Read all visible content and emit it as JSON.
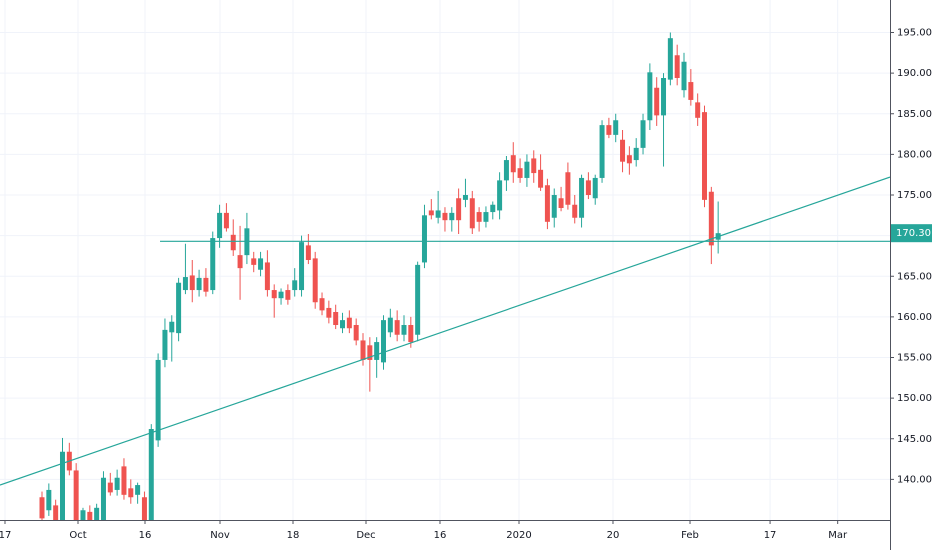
{
  "chart_data": {
    "type": "candlestick",
    "up_color": "#26a69a",
    "down_color": "#ef5350",
    "open": [
      137.8,
      136.2,
      136.8,
      135.0,
      143.4,
      141.1,
      135,
      136,
      135,
      135,
      139.6,
      138.7,
      141.6,
      138.9,
      138.1,
      137.8,
      135,
      144.8,
      154.7,
      158.1,
      158,
      163.3,
      165.1,
      163.3,
      164.8,
      163.3,
      169.7,
      172.8,
      170.1,
      167.6,
      167.6,
      167.2,
      165.8,
      166.7,
      163.3,
      162.3,
      163.3,
      163.3,
      163.3,
      168.8,
      167.2,
      162.3,
      161.1,
      160.6,
      158.6,
      159.9,
      159,
      157.1,
      156.5,
      154.7,
      154.4,
      158.1,
      159.6,
      157.8,
      159,
      157.8,
      166.7,
      173.1,
      172.2,
      172.8,
      171.9,
      174.6,
      174.4,
      174.6,
      172.9,
      171.7,
      172.9,
      173.1,
      176.8,
      179.9,
      178.3,
      177.1,
      179.5,
      178.1,
      176.2,
      172.2,
      174.6,
      177.8,
      173.8,
      172.2,
      176.8,
      174.6,
      177.1,
      183.6,
      182.4,
      181.8,
      179.9,
      179.3,
      180.8,
      184.2,
      188.2,
      184.8,
      189.2,
      192.2,
      187.9,
      188.9,
      186.4,
      185.2,
      175.4,
      169.5
    ],
    "high": [
      138.5,
      139.5,
      137.5,
      145.1,
      144.5,
      142,
      136.5,
      136.8,
      137,
      141,
      140.8,
      141.2,
      142.6,
      140,
      139.6,
      138.5,
      146.8,
      155.5,
      159.8,
      160.2,
      164.8,
      169,
      167,
      165.8,
      166,
      170.5,
      173.8,
      174,
      172,
      171.2,
      172.8,
      168,
      168,
      168.2,
      164,
      163.5,
      164,
      166,
      170,
      170.2,
      168,
      163,
      162,
      161.5,
      160.5,
      160.8,
      159.8,
      158,
      157.5,
      157.5,
      160.2,
      161,
      160.8,
      160.2,
      160,
      166.8,
      173.8,
      174.5,
      175.5,
      173.5,
      173.5,
      175.8,
      177,
      175.5,
      173.5,
      173.6,
      174.2,
      177.8,
      179.8,
      181.5,
      179.5,
      180,
      180.5,
      180,
      177,
      175.8,
      176,
      179,
      175,
      177.5,
      177.8,
      177.5,
      184.2,
      184.5,
      185,
      183,
      181,
      182,
      185,
      191.2,
      189.5,
      190,
      195,
      193.5,
      192.5,
      190.5,
      187.5,
      186,
      176,
      174.2
    ],
    "low": [
      134.5,
      135.5,
      134,
      134.5,
      140.5,
      134,
      134,
      134,
      134,
      134.5,
      138,
      138,
      137.5,
      137,
      137,
      134,
      134.5,
      144,
      153.8,
      154.5,
      157,
      162.8,
      161.8,
      162.5,
      162.5,
      162.8,
      168.5,
      170.5,
      167.5,
      162.1,
      166.5,
      165.5,
      165,
      162.5,
      159.9,
      161.5,
      161.5,
      162.5,
      162.5,
      166.5,
      161,
      160.2,
      159.2,
      158.5,
      158,
      158,
      156.5,
      154,
      150.8,
      152.5,
      153.5,
      157.5,
      157,
      157,
      156.2,
      157,
      166,
      172,
      171.5,
      170.5,
      170.5,
      170.2,
      173.5,
      170.2,
      170.5,
      171,
      172,
      172,
      175.5,
      176.5,
      176.5,
      176,
      176.5,
      175.5,
      170.8,
      171,
      173,
      173.2,
      171.5,
      171,
      174.5,
      173.8,
      176.5,
      182,
      181.5,
      177.8,
      177.5,
      178.5,
      180,
      183,
      183.5,
      178.5,
      188.5,
      188.5,
      187,
      186,
      183.5,
      173.5,
      166.5,
      167.8
    ],
    "close": [
      135.2,
      138.7,
      135.0,
      143.4,
      141.1,
      135.0,
      136.2,
      135,
      136.5,
      140.2,
      138.4,
      140.2,
      138.1,
      137.8,
      139.3,
      135,
      146.2,
      154.7,
      158.4,
      159.4,
      164.2,
      164.9,
      163.3,
      164.8,
      163.1,
      169.7,
      172.8,
      170.9,
      168.2,
      166,
      170.9,
      166.4,
      167.2,
      163.3,
      162.3,
      163.1,
      162.1,
      164.5,
      169.2,
      167,
      161.8,
      160.8,
      159.9,
      159,
      159.6,
      158.6,
      157.1,
      154.7,
      154.7,
      156.9,
      159.6,
      159.9,
      157.8,
      159,
      156.9,
      166.4,
      172.5,
      172.5,
      173.1,
      171.9,
      172.8,
      171.9,
      175,
      170.9,
      171.7,
      172.9,
      173.8,
      176.8,
      179.3,
      177.8,
      177.1,
      179.1,
      177.7,
      175.9,
      171.7,
      175,
      173.4,
      173.8,
      172.2,
      177.1,
      175,
      177.1,
      183.6,
      182.4,
      184.2,
      179.1,
      178.9,
      180.8,
      184.2,
      190.1,
      184.8,
      189.4,
      194.3,
      189.4,
      191.4,
      186.7,
      184.5,
      174.4,
      168.8,
      170.3
    ],
    "last_price": {
      "value": 170.3,
      "label": "170.30"
    },
    "lines": [
      {
        "color": "#26a69a",
        "x": [
          17.28,
          124.16
        ],
        "y": [
          169.3,
          169.3
        ]
      },
      {
        "color": "#26a69a",
        "x": [
          -6.15,
          124.16
        ],
        "y": [
          139.3,
          177.2
        ]
      }
    ],
    "xlim": [
      -6.15,
      124.16
    ],
    "xticks": [
      {
        "value": -5.42,
        "label": "17"
      },
      {
        "value": 5.27,
        "label": "Oct"
      },
      {
        "value": 15.08,
        "label": "16"
      },
      {
        "value": 26.06,
        "label": "Nov"
      },
      {
        "value": 36.75,
        "label": "18"
      },
      {
        "value": 47.44,
        "label": "Dec"
      },
      {
        "value": 58.27,
        "label": "16"
      },
      {
        "value": 69.84,
        "label": "2020"
      },
      {
        "value": 83.6,
        "label": "20"
      },
      {
        "value": 94.88,
        "label": "Feb"
      },
      {
        "value": 106.6,
        "label": "17"
      },
      {
        "value": 116.5,
        "label": "Mar"
      }
    ],
    "ylim": [
      135,
      199
    ],
    "yticks": [
      {
        "value": 140,
        "label": "140.00"
      },
      {
        "value": 145,
        "label": "145.00"
      },
      {
        "value": 150,
        "label": "150.00"
      },
      {
        "value": 155,
        "label": "155.00"
      },
      {
        "value": 160,
        "label": "160.00"
      },
      {
        "value": 165,
        "label": "165.00"
      },
      {
        "value": 170,
        "label": "170.00"
      },
      {
        "value": 175,
        "label": "175.00"
      },
      {
        "value": 180,
        "label": "180.00"
      },
      {
        "value": 185,
        "label": "185.00"
      },
      {
        "value": 190,
        "label": "190.00"
      },
      {
        "value": 195,
        "label": "195.00"
      }
    ],
    "grid": true
  }
}
